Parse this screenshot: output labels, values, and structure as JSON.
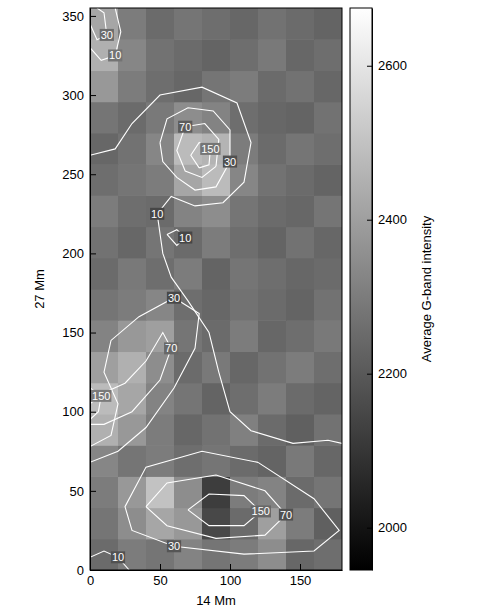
{
  "chart_data": {
    "type": "heatmap",
    "x_label": "14 Mm",
    "y_label": "27 Mm",
    "xlim": [
      0,
      180
    ],
    "ylim": [
      0,
      355
    ],
    "xticks": [
      0,
      50,
      100,
      150
    ],
    "yticks": [
      0,
      50,
      100,
      150,
      200,
      250,
      300,
      350
    ],
    "cells": [
      [
        2250,
        2300,
        2280,
        2320,
        2280,
        2300,
        2350,
        2240,
        2260
      ],
      [
        2280,
        2350,
        2420,
        2380,
        2150,
        2250,
        2400,
        2300,
        2220
      ],
      [
        2300,
        2380,
        2500,
        2350,
        2120,
        2300,
        2320,
        2250,
        2280
      ],
      [
        2330,
        2280,
        2300,
        2260,
        2280,
        2250,
        2230,
        2290,
        2240
      ],
      [
        2450,
        2380,
        2300,
        2240,
        2270,
        2310,
        2250,
        2220,
        2270
      ],
      [
        2480,
        2420,
        2320,
        2280,
        2230,
        2260,
        2300,
        2250,
        2230
      ],
      [
        2400,
        2450,
        2350,
        2250,
        2290,
        2240,
        2270,
        2300,
        2260
      ],
      [
        2320,
        2380,
        2400,
        2280,
        2250,
        2300,
        2240,
        2260,
        2290
      ],
      [
        2280,
        2300,
        2330,
        2260,
        2240,
        2270,
        2250,
        2230,
        2270
      ],
      [
        2250,
        2290,
        2260,
        2300,
        2230,
        2280,
        2260,
        2240,
        2250
      ],
      [
        2270,
        2240,
        2280,
        2250,
        2300,
        2260,
        2230,
        2270,
        2240
      ],
      [
        2300,
        2260,
        2250,
        2320,
        2350,
        2280,
        2250,
        2240,
        2280
      ],
      [
        2260,
        2280,
        2300,
        2420,
        2480,
        2330,
        2270,
        2250,
        2230
      ],
      [
        2240,
        2270,
        2330,
        2480,
        2460,
        2300,
        2250,
        2280,
        2260
      ],
      [
        2280,
        2250,
        2290,
        2350,
        2320,
        2260,
        2240,
        2230,
        2270
      ],
      [
        2380,
        2300,
        2260,
        2240,
        2280,
        2300,
        2250,
        2270,
        2240
      ],
      [
        2450,
        2330,
        2270,
        2250,
        2230,
        2260,
        2290,
        2240,
        2260
      ],
      [
        2420,
        2300,
        2250,
        2280,
        2260,
        2240,
        2270,
        2250,
        2230
      ]
    ],
    "colorbar": {
      "label": "Average G-band intensity",
      "range": [
        1945,
        2675
      ],
      "ticks": [
        2000,
        2200,
        2400,
        2600
      ]
    },
    "contours": [
      {
        "level": 10,
        "x": [
          0,
          8,
          18,
          22,
          18
        ],
        "y": [
          330,
          322,
          325,
          340,
          355
        ]
      },
      {
        "level": 10,
        "x": [
          0,
          18,
          30,
          50,
          80,
          105,
          115,
          110,
          95,
          75,
          58,
          48,
          52,
          58,
          70,
          85,
          92,
          100,
          115,
          145,
          170,
          180
        ],
        "y": [
          262,
          266,
          282,
          300,
          305,
          295,
          270,
          245,
          232,
          230,
          236,
          225,
          200,
          185,
          170,
          150,
          125,
          100,
          88,
          80,
          82,
          80
        ]
      },
      {
        "level": 10,
        "x": [
          55,
          62,
          68,
          62,
          55
        ],
        "y": [
          212,
          215,
          210,
          205,
          212
        ]
      },
      {
        "level": 10,
        "x": [
          0,
          10,
          20,
          28
        ],
        "y": [
          8,
          12,
          8,
          0
        ]
      },
      {
        "level": 30,
        "x": [
          0,
          5,
          12,
          10,
          5
        ],
        "y": [
          345,
          335,
          338,
          352,
          355
        ]
      },
      {
        "level": 30,
        "x": [
          50,
          55,
          70,
          88,
          100,
          100,
          90,
          75,
          62,
          52,
          50
        ],
        "y": [
          270,
          285,
          292,
          290,
          278,
          258,
          242,
          240,
          248,
          258,
          270
        ]
      },
      {
        "level": 30,
        "x": [
          0,
          15,
          20,
          10,
          15,
          35,
          60,
          78,
          75,
          60,
          40,
          20,
          0
        ],
        "y": [
          78,
          85,
          105,
          125,
          145,
          160,
          172,
          162,
          140,
          115,
          90,
          75,
          68
        ]
      },
      {
        "level": 30,
        "x": [
          120,
          160,
          178,
          160,
          110,
          60,
          30,
          25,
          40,
          80,
          120
        ],
        "y": [
          68,
          45,
          25,
          12,
          10,
          15,
          25,
          40,
          65,
          75,
          68
        ]
      },
      {
        "level": 70,
        "x": [
          90,
          80,
          68,
          62,
          68,
          82,
          92,
          90
        ],
        "y": [
          255,
          248,
          252,
          265,
          280,
          282,
          272,
          255
        ]
      },
      {
        "level": 70,
        "x": [
          0,
          10,
          25,
          40,
          52,
          58,
          50,
          30,
          10,
          0
        ],
        "y": [
          105,
          112,
          118,
          132,
          150,
          140,
          120,
          100,
          92,
          92
        ]
      },
      {
        "level": 70,
        "x": [
          40,
          55,
          90,
          125,
          140,
          125,
          90,
          55,
          40
        ],
        "y": [
          40,
          55,
          60,
          50,
          35,
          22,
          20,
          28,
          40
        ]
      },
      {
        "level": 150,
        "x": [
          78,
          72,
          78,
          86,
          85,
          78
        ],
        "y": [
          254,
          262,
          270,
          266,
          256,
          254
        ]
      },
      {
        "level": 150,
        "x": [
          70,
          85,
          110,
          122,
          110,
          85,
          70
        ],
        "y": [
          38,
          48,
          47,
          37,
          28,
          28,
          38
        ]
      },
      {
        "level": 150,
        "x": [
          0,
          6,
          8,
          0
        ],
        "y": [
          95,
          100,
          110,
          115
        ]
      }
    ]
  }
}
